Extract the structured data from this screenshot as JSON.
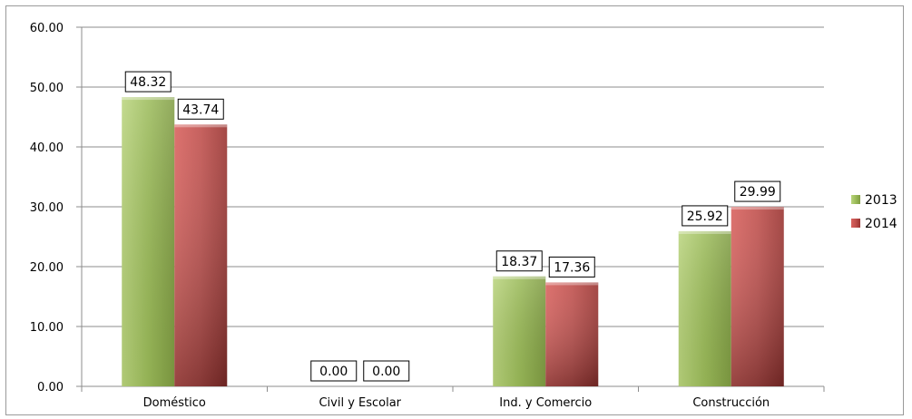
{
  "chart_data": {
    "type": "bar",
    "categories": [
      "Doméstico",
      "Civil y Escolar",
      "Ind. y Comercio",
      "Construcción"
    ],
    "series": [
      {
        "name": "2013",
        "values": [
          48.32,
          0.0,
          18.37,
          25.92
        ],
        "color": "#9bbb59"
      },
      {
        "name": "2014",
        "values": [
          43.74,
          0.0,
          17.36,
          29.99
        ],
        "color": "#c0504d"
      }
    ],
    "ylim": [
      0,
      60
    ],
    "yticks": [
      0,
      10,
      20,
      30,
      40,
      50,
      60
    ],
    "ytick_labels": [
      "0.00",
      "10.00",
      "20.00",
      "30.00",
      "40.00",
      "50.00",
      "60.00"
    ],
    "data_labels": [
      [
        "48.32",
        "0.00",
        "18.37",
        "25.92"
      ],
      [
        "43.74",
        "0.00",
        "17.36",
        "29.99"
      ]
    ],
    "grid": true,
    "legend_position": "right"
  }
}
